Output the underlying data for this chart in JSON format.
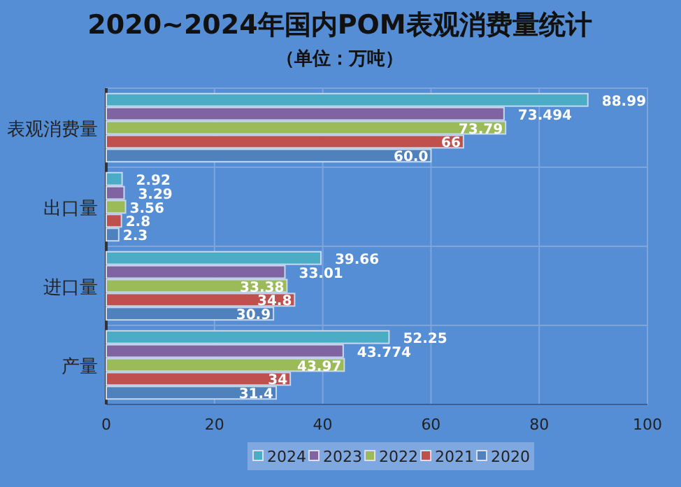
{
  "chart_data": {
    "type": "bar",
    "orientation": "horizontal",
    "title": "2020~2024年国内POM表观消费量统计",
    "subtitle": "（单位：万吨）",
    "categories": [
      "表观消费量",
      "出口量",
      "进口量",
      "产量"
    ],
    "series": [
      {
        "name": "2024",
        "color": "#4bacc6",
        "values": [
          88.99,
          2.92,
          39.66,
          52.25
        ],
        "value_labels": [
          "88.99",
          "2.92",
          "39.66",
          "52.25"
        ]
      },
      {
        "name": "2023",
        "color": "#8064a2",
        "values": [
          73.494,
          3.29,
          33.01,
          43.774
        ],
        "value_labels": [
          "73.494",
          "3.29",
          "33.01",
          "43.774"
        ]
      },
      {
        "name": "2022",
        "color": "#9bbb59",
        "values": [
          73.79,
          3.56,
          33.38,
          43.97
        ],
        "value_labels": [
          "73.79",
          "3.56",
          "33.38",
          "43.97"
        ]
      },
      {
        "name": "2021",
        "color": "#c0504d",
        "values": [
          66,
          2.8,
          34.8,
          34
        ],
        "value_labels": [
          "66",
          "2.8",
          "34.8",
          "34"
        ]
      },
      {
        "name": "2020",
        "color": "#4f81bd",
        "values": [
          60,
          2.3,
          30.9,
          31.4
        ],
        "value_labels": [
          "60.0",
          "2.3",
          "30.9",
          "31.4"
        ]
      }
    ],
    "xlim": [
      0,
      100
    ],
    "xticks": [
      0,
      20,
      40,
      60,
      80,
      100
    ],
    "grid": true,
    "legend": "bottom"
  }
}
